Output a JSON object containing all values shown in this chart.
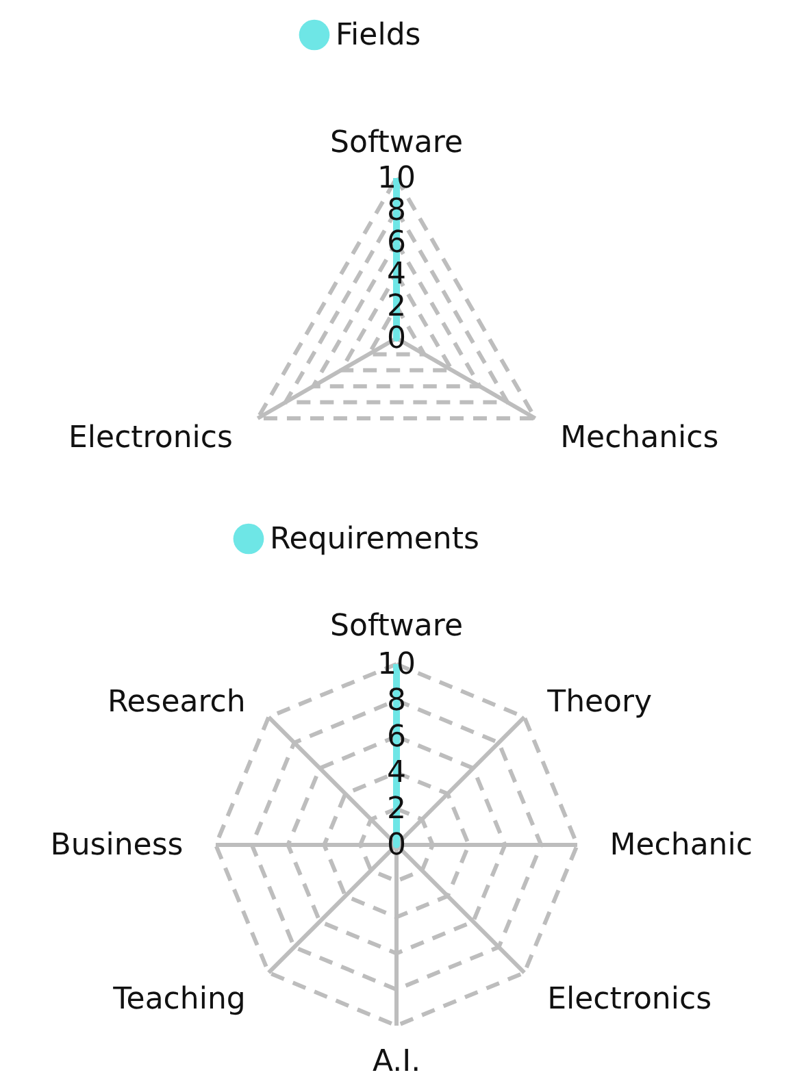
{
  "chart_data": [
    {
      "type": "radar",
      "categories": [
        "Software",
        "Mechanics",
        "Electronics"
      ],
      "series": [
        {
          "name": "Fields",
          "color": "#6ee6e6",
          "values": [
            10,
            0,
            0
          ]
        }
      ],
      "ylim": [
        0,
        10
      ],
      "yticks": [
        0,
        2,
        4,
        6,
        8,
        10
      ],
      "grid": true,
      "legend": "top"
    },
    {
      "type": "radar",
      "categories": [
        "Software",
        "Theory",
        "Mechanic",
        "Electronics",
        "A.I.",
        "Teaching",
        "Business",
        "Research"
      ],
      "series": [
        {
          "name": "Requirements",
          "color": "#6ee6e6",
          "values": [
            10,
            0,
            0,
            0,
            0,
            0,
            0,
            0
          ]
        }
      ],
      "ylim": [
        0,
        10
      ],
      "yticks": [
        0,
        2,
        4,
        6,
        8,
        10
      ],
      "grid": true,
      "legend": "top"
    }
  ]
}
